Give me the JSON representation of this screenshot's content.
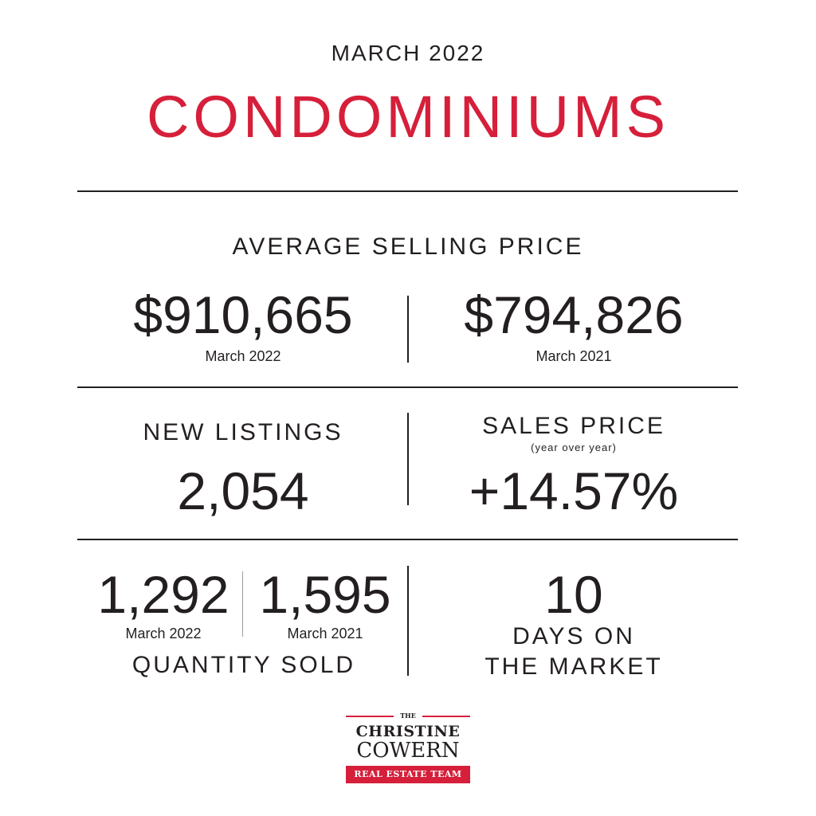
{
  "header": {
    "month": "MARCH 2022",
    "title": "CONDOMINIUMS"
  },
  "avg_price": {
    "label": "AVERAGE SELLING PRICE",
    "current": {
      "value": "$910,665",
      "period": "March 2022"
    },
    "previous": {
      "value": "$794,826",
      "period": "March 2021"
    }
  },
  "new_listings": {
    "label": "NEW LISTINGS",
    "value": "2,054"
  },
  "sales_price": {
    "label": "SALES PRICE",
    "sublabel": "(year over year)",
    "value": "+14.57%"
  },
  "quantity_sold": {
    "label": "QUANTITY SOLD",
    "current": {
      "value": "1,292",
      "period": "March 2022"
    },
    "previous": {
      "value": "1,595",
      "period": "March 2021"
    }
  },
  "days_on_market": {
    "value": "10",
    "label_line1": "DAYS ON",
    "label_line2": "THE MARKET"
  },
  "logo": {
    "the": "THE",
    "line1": "CHRISTINE",
    "line2": "COWERN",
    "band": "REAL ESTATE TEAM"
  },
  "colors": {
    "accent": "#d61f3a",
    "text": "#231f20"
  }
}
